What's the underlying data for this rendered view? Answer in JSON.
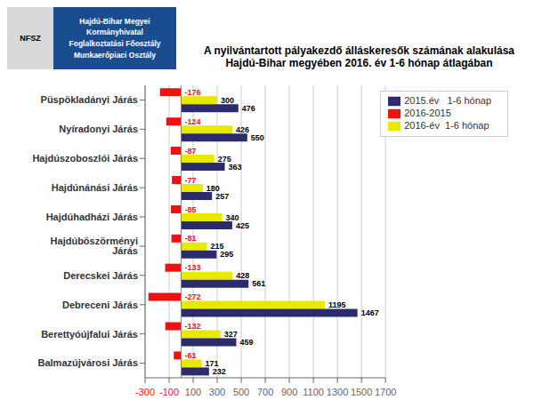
{
  "chart_data": {
    "type": "bar",
    "orientation": "horizontal",
    "title": "A nyilvántartott pályakezdő álláskeresők számának alakulása\nHajdú-Bihar megyében 2016. év 1-6 hónap átlagában",
    "annotations": [
      "Hajdú-Bihar Megyei Kormányhivatal\nFoglalkoztatási Főosztály\nMunkaerőpiaci Osztály",
      "NFSZ"
    ],
    "categories": [
      "Balmazújvárosi Járás",
      "Berettyóújfalui Járás",
      "Debreceni Járás",
      "Derecskei Járás",
      "Hajdúböszörményi Járás",
      "Hajdúhadházi Járás",
      "Hajdúnánási Járás",
      "Hajdúszoboszlói Járás",
      "Nyíradonyi Járás",
      "Püspökladányi Járás"
    ],
    "series": [
      {
        "name": "2016-2015",
        "color": "#ee1111",
        "values": [
          -61,
          -132,
          -272,
          -133,
          -81,
          -85,
          -77,
          -87,
          -124,
          -176
        ]
      },
      {
        "name": "2016-év  1-6 hónap",
        "color": "#e8e800",
        "values": [
          171,
          327,
          1195,
          428,
          215,
          340,
          180,
          275,
          426,
          300
        ]
      },
      {
        "name": "2015.év   1-6 hónap",
        "color": "#2b2b6e",
        "values": [
          232,
          459,
          1467,
          561,
          295,
          425,
          257,
          363,
          550,
          476
        ]
      }
    ],
    "xlim": [
      -300,
      1700
    ],
    "xticks": [
      -300,
      -100,
      100,
      300,
      500,
      700,
      900,
      1100,
      1300,
      1500,
      1700
    ],
    "grid": true,
    "legend": "upper right",
    "data_labels": true
  }
}
